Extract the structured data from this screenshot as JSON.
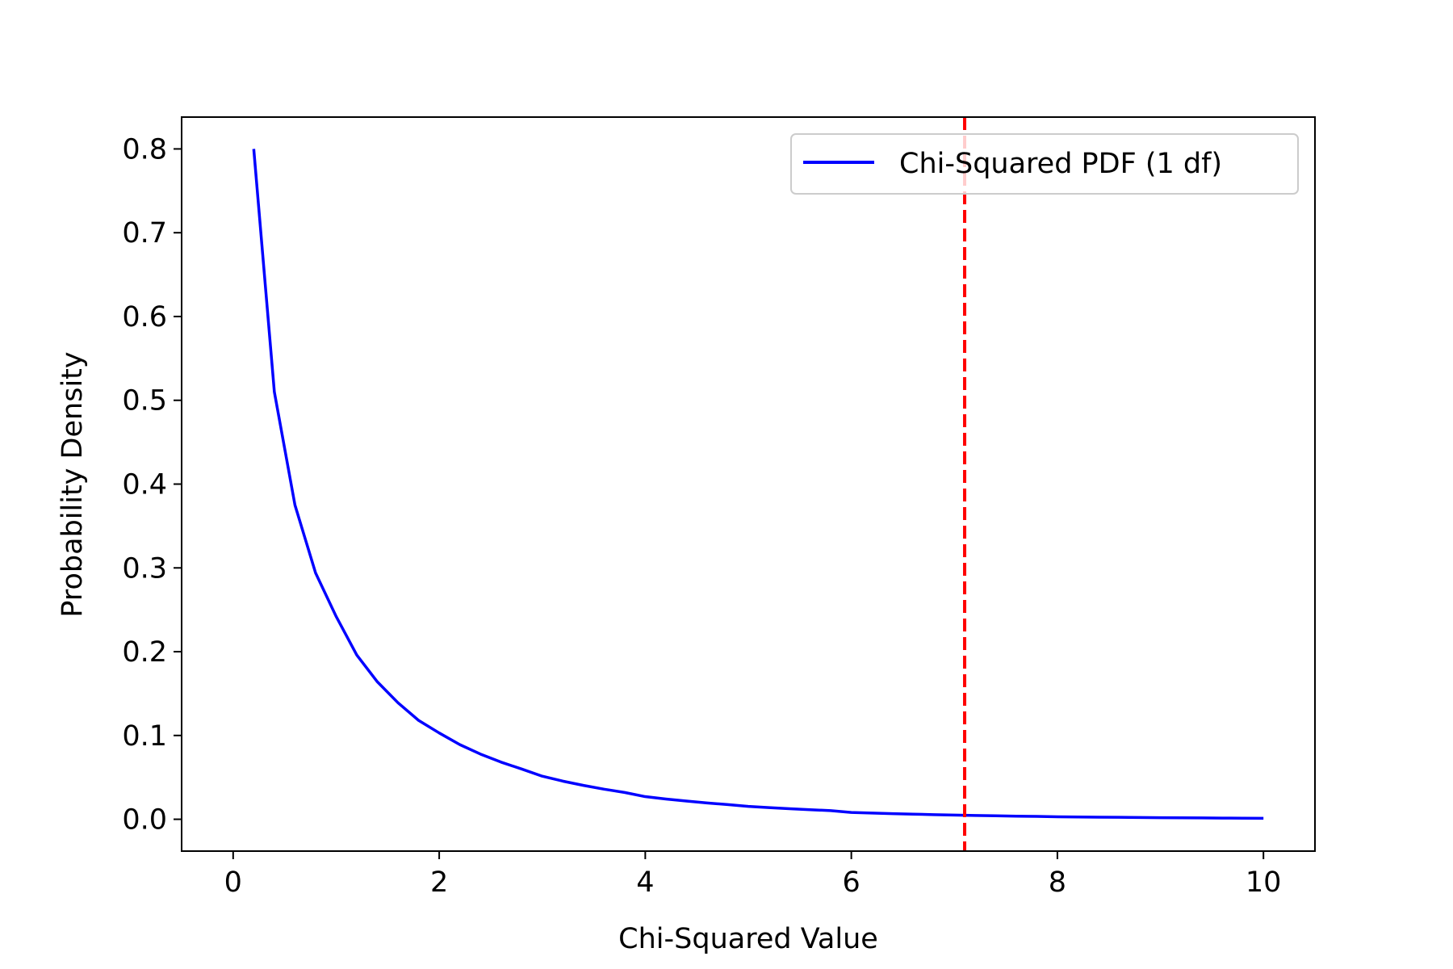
{
  "chart_data": {
    "type": "line",
    "title": "",
    "xlabel": "Chi-Squared Value",
    "ylabel": "Probability Density",
    "xlim": [
      -0.5,
      10.5
    ],
    "ylim": [
      -0.038,
      0.838
    ],
    "x_ticks": [
      0,
      2,
      4,
      6,
      8,
      10
    ],
    "x_tick_labels": [
      "0",
      "2",
      "4",
      "6",
      "8",
      "10"
    ],
    "y_ticks": [
      0.0,
      0.1,
      0.2,
      0.3,
      0.4,
      0.5,
      0.6,
      0.7,
      0.8
    ],
    "y_tick_labels": [
      "0.0",
      "0.1",
      "0.2",
      "0.3",
      "0.4",
      "0.5",
      "0.6",
      "0.7",
      "0.8"
    ],
    "grid": false,
    "legend_position": "top-right",
    "series": [
      {
        "name": "Chi-Squared PDF (1 df)",
        "color": "#0000ff",
        "x": [
          0.2,
          0.4,
          0.6,
          0.8,
          1.0,
          1.2,
          1.4,
          1.6,
          1.8,
          2.0,
          2.2,
          2.4,
          2.6,
          2.8,
          3.0,
          3.2,
          3.4,
          3.6,
          3.8,
          4.0,
          4.2,
          4.4,
          4.6,
          4.8,
          5.0,
          5.2,
          5.4,
          5.6,
          5.8,
          6.0,
          6.2,
          6.4,
          6.6,
          6.8,
          7.0,
          7.2,
          7.4,
          7.6,
          7.8,
          8.0,
          8.2,
          8.4,
          8.6,
          8.8,
          9.0,
          9.2,
          9.4,
          9.6,
          9.8,
          10.0
        ],
        "y": [
          0.8,
          0.51,
          0.375,
          0.294,
          0.242,
          0.196,
          0.164,
          0.139,
          0.118,
          0.103,
          0.0891,
          0.0778,
          0.0682,
          0.06,
          0.0514,
          0.0455,
          0.0404,
          0.0359,
          0.032,
          0.027,
          0.0242,
          0.0217,
          0.0195,
          0.0175,
          0.0154,
          0.0139,
          0.0126,
          0.0114,
          0.0103,
          0.0081,
          0.0074,
          0.0067,
          0.0061,
          0.0055,
          0.005,
          0.0045,
          0.0041,
          0.0037,
          0.0034,
          0.003,
          0.0027,
          0.0025,
          0.0023,
          0.0021,
          0.0019,
          0.0017,
          0.0016,
          0.0014,
          0.0013,
          0.0012
        ]
      }
    ],
    "reference_line": {
      "x": 7.1,
      "color": "#ff0000",
      "style": "dashed"
    }
  }
}
